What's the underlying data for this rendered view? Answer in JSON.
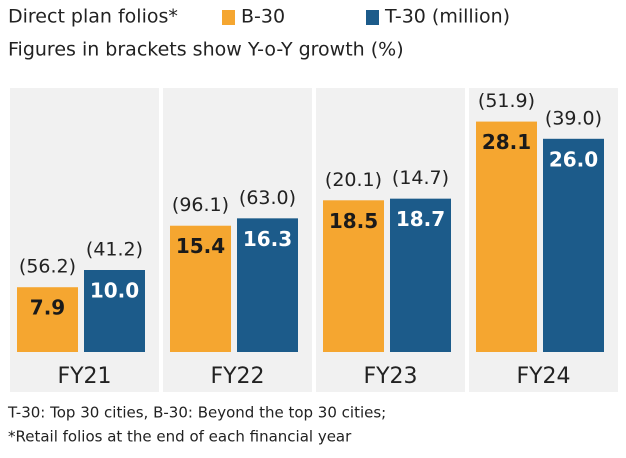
{
  "chart_data": {
    "type": "bar",
    "title": "Direct plan folios*",
    "subtitle": "Figures in brackets show Y-o-Y growth (%)",
    "categories": [
      "FY21",
      "FY22",
      "FY23",
      "FY24"
    ],
    "series": [
      {
        "name": "B-30",
        "color": "#f5a630",
        "values": [
          7.9,
          15.4,
          18.5,
          28.1
        ],
        "growth_labels": [
          "(56.2)",
          "(96.1)",
          "(20.1)",
          "(51.9)"
        ]
      },
      {
        "name": "T-30 (million)",
        "color": "#1c5b8a",
        "values": [
          10.0,
          16.3,
          18.7,
          26.0
        ],
        "value_labels": [
          "10.0",
          "16.3",
          "18.7",
          "26.0"
        ],
        "growth_labels": [
          "(41.2)",
          "(63.0)",
          "(14.7)",
          "(39.0)"
        ]
      }
    ],
    "footnotes": [
      "T-30: Top 30 cities,  B-30: Beyond the top 30 cities;",
      "*Retail folios at the end of each financial year"
    ]
  }
}
